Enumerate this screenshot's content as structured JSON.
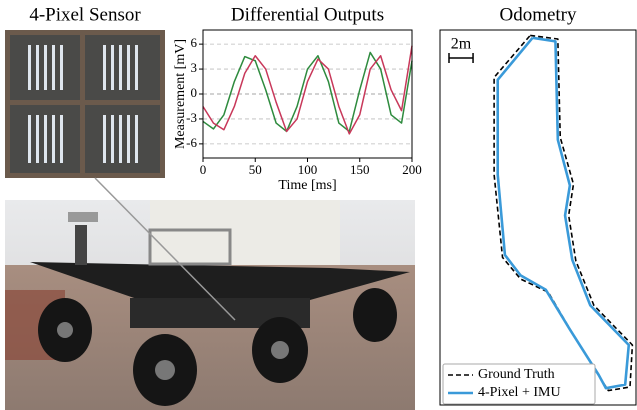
{
  "panels": {
    "sensor_title": "4-Pixel Sensor"
  },
  "chart_data": [
    {
      "type": "line",
      "title": "Differential Outputs",
      "x_label": "Time [ms]",
      "y_label": "Measurement [mV]",
      "x": [
        0,
        10,
        20,
        30,
        40,
        50,
        60,
        70,
        80,
        90,
        100,
        110,
        120,
        130,
        140,
        150,
        160,
        170,
        180,
        190,
        200
      ],
      "series": [
        {
          "color": "#2e8b3e",
          "values": [
            -3.3,
            -4.2,
            -2.5,
            1.5,
            4.5,
            4.0,
            0.5,
            -3.5,
            -4.5,
            -1.5,
            3.0,
            4.6,
            1.5,
            -3.5,
            -4.5,
            0.5,
            5.0,
            3.0,
            -2.5,
            -3.5,
            4.0
          ]
        },
        {
          "color": "#c8385a",
          "values": [
            -1.5,
            -3.5,
            -4.3,
            -1.5,
            2.5,
            4.6,
            3.0,
            -1.0,
            -4.5,
            -3.0,
            1.5,
            4.2,
            3.0,
            -1.5,
            -4.8,
            -2.5,
            3.0,
            4.6,
            0.5,
            -2.0,
            5.8
          ]
        }
      ],
      "xlim": [
        0,
        200
      ],
      "xticks": [
        0,
        50,
        100,
        150,
        200
      ],
      "ylim": [
        -7.7,
        7.7
      ],
      "yticks": [
        -6,
        -3,
        0,
        3,
        6
      ],
      "grid": true
    },
    {
      "type": "path",
      "title": "Odometry",
      "scale_bar": {
        "label": "2m",
        "length": 2
      },
      "legend": "lower left",
      "xlim": [
        0,
        16.3
      ],
      "ylim": [
        0,
        31.25
      ],
      "series": [
        {
          "name": "Ground Truth",
          "color": "#000000",
          "dashed": true,
          "x": [
            7.5,
            9.8,
            10.0,
            11.1,
            10.7,
            11.3,
            12.8,
            16.0,
            15.8,
            14.0,
            13.3,
            11.0,
            9.0,
            6.7,
            5.2,
            4.5,
            4.5,
            7.5
          ],
          "values": [
            30.8,
            30.5,
            22.3,
            18.4,
            15.8,
            12.0,
            8.3,
            5.0,
            1.5,
            1.2,
            2.3,
            6.0,
            9.4,
            10.5,
            12.3,
            19.2,
            27.3,
            30.8
          ]
        },
        {
          "name": "4-Pixel + IMU",
          "color": "#3a9ad9",
          "dashed": false,
          "x": [
            7.7,
            9.6,
            9.8,
            10.8,
            10.4,
            11.0,
            12.5,
            15.7,
            15.4,
            13.8,
            13.2,
            10.8,
            8.8,
            6.7,
            5.4,
            4.8,
            4.8,
            7.7
          ],
          "values": [
            30.6,
            30.3,
            22.1,
            18.3,
            15.8,
            12.1,
            8.3,
            5.0,
            1.7,
            1.4,
            2.5,
            6.3,
            9.6,
            10.8,
            12.5,
            19.2,
            27.1,
            30.6
          ]
        }
      ]
    }
  ]
}
